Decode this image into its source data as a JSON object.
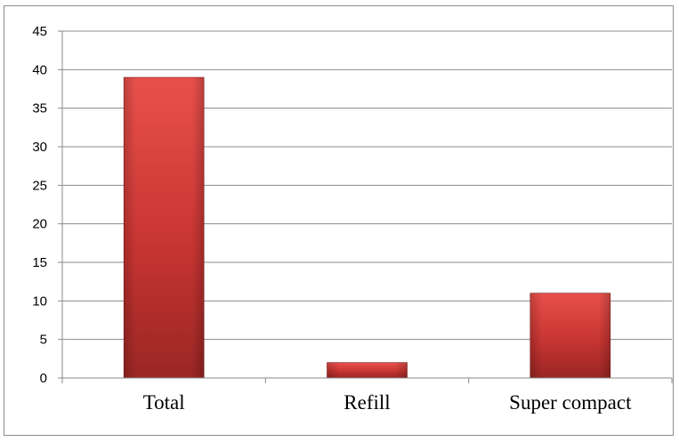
{
  "colors": {
    "bar_top": "#e8504c",
    "bar_mid": "#c83532",
    "bar_bottom": "#9a2624",
    "grid": "#8a8a8a"
  },
  "chart_data": {
    "type": "bar",
    "categories": [
      "Total",
      "Refill",
      "Super compact"
    ],
    "values": [
      39,
      2,
      11
    ],
    "ylim": [
      0,
      45
    ],
    "yticks": [
      0,
      5,
      10,
      15,
      20,
      25,
      30,
      35,
      40,
      45
    ],
    "title": "",
    "xlabel": "",
    "ylabel": "",
    "grid": true,
    "legend": "none"
  }
}
